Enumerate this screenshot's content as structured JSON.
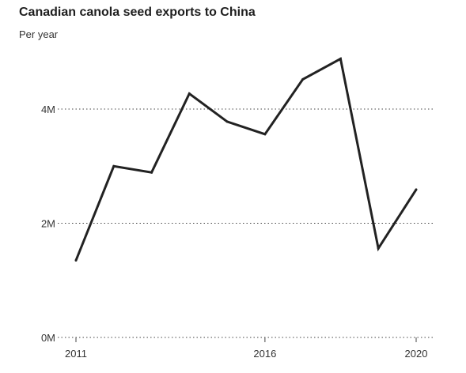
{
  "chart_data": {
    "type": "line",
    "title": "Canadian canola seed exports to China",
    "subtitle": "Per year",
    "xlabel": "",
    "ylabel": "",
    "x": [
      2011,
      2012,
      2013,
      2014,
      2015,
      2016,
      2017,
      2018,
      2019,
      2020
    ],
    "series": [
      {
        "values": [
          1350000,
          3000000,
          2890000,
          4270000,
          3780000,
          3560000,
          4520000,
          4880000,
          1560000,
          2590000
        ]
      }
    ],
    "xlim": [
      2011,
      2020
    ],
    "ylim": [
      0,
      4000000
    ],
    "x_ticks": [
      {
        "value": 2011,
        "label": "2011"
      },
      {
        "value": 2016,
        "label": "2016"
      },
      {
        "value": 2020,
        "label": "2020"
      }
    ],
    "y_ticks": [
      {
        "value": 0,
        "label": "0M"
      },
      {
        "value": 2000000,
        "label": "2M"
      },
      {
        "value": 4000000,
        "label": "4M"
      }
    ],
    "grid": true,
    "line_color": "#222222"
  }
}
